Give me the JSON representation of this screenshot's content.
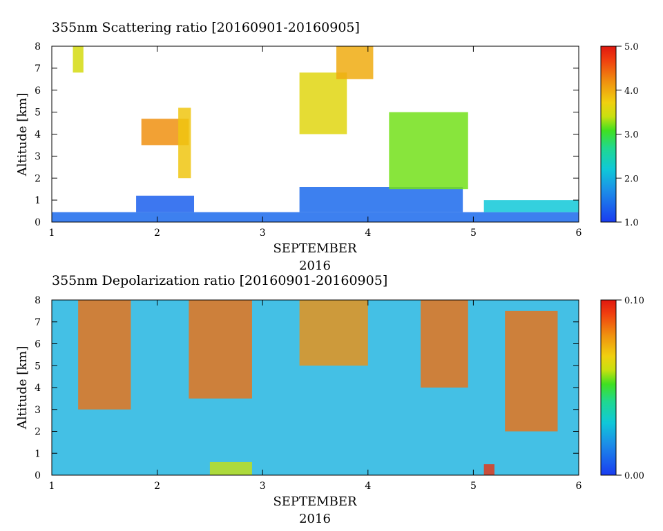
{
  "chart_data": [
    {
      "type": "heatmap",
      "title": "355nm Scattering ratio [20160901-20160905]",
      "xlabel": "SEPTEMBER",
      "xlabel2": "2016",
      "ylabel": "Altitude [km]",
      "xlim": [
        1,
        6
      ],
      "ylim": [
        0,
        8
      ],
      "xticks": [
        "1",
        "2",
        "3",
        "4",
        "5",
        "6"
      ],
      "yticks": [
        "0",
        "1",
        "2",
        "3",
        "4",
        "5",
        "6",
        "7",
        "8"
      ],
      "colorbar": {
        "min": 1.0,
        "max": 5.0,
        "ticks": [
          "1.0",
          "2.0",
          "3.0",
          "4.0",
          "5.0"
        ]
      },
      "features": [
        {
          "t0": 1.0,
          "t1": 6.0,
          "z0": 0.0,
          "z1": 0.45,
          "value": 1.4
        },
        {
          "t0": 1.8,
          "t1": 2.35,
          "z0": 0.45,
          "z1": 1.2,
          "value": 1.3
        },
        {
          "t0": 3.35,
          "t1": 4.9,
          "z0": 0.45,
          "z1": 1.6,
          "value": 1.4
        },
        {
          "t0": 5.1,
          "t1": 6.0,
          "z0": 0.45,
          "z1": 1.0,
          "value": 2.2
        },
        {
          "t0": 1.85,
          "t1": 2.3,
          "z0": 3.5,
          "z1": 4.7,
          "value": 4.2
        },
        {
          "t0": 2.2,
          "t1": 2.32,
          "z0": 2.0,
          "z1": 5.2,
          "value": 3.8
        },
        {
          "t0": 3.35,
          "t1": 3.8,
          "z0": 4.0,
          "z1": 6.8,
          "value": 3.6
        },
        {
          "t0": 3.7,
          "t1": 4.05,
          "z0": 6.5,
          "z1": 8.0,
          "value": 4.0
        },
        {
          "t0": 4.2,
          "t1": 4.95,
          "z0": 1.5,
          "z1": 5.0,
          "value": 3.2
        },
        {
          "t0": 1.2,
          "t1": 1.3,
          "z0": 6.8,
          "z1": 8.0,
          "value": 3.5
        }
      ]
    },
    {
      "type": "heatmap",
      "title": "355nm Depolarization ratio [20160901-20160905]",
      "xlabel": "SEPTEMBER",
      "xlabel2": "2016",
      "ylabel": "Altitude [km]",
      "xlim": [
        1,
        6
      ],
      "ylim": [
        0,
        8
      ],
      "xticks": [
        "1",
        "2",
        "3",
        "4",
        "5",
        "6"
      ],
      "yticks": [
        "0",
        "1",
        "2",
        "3",
        "4",
        "5",
        "6",
        "7",
        "8"
      ],
      "colorbar": {
        "min": 0.0,
        "max": 0.1,
        "ticks": [
          "0.00",
          "0.10"
        ]
      },
      "features": [
        {
          "t0": 1.0,
          "t1": 6.0,
          "z0": 0.0,
          "z1": 8.0,
          "value": 0.025
        },
        {
          "t0": 1.25,
          "t1": 1.75,
          "z0": 3.0,
          "z1": 8.0,
          "value": 0.085
        },
        {
          "t0": 2.3,
          "t1": 2.9,
          "z0": 3.5,
          "z1": 8.0,
          "value": 0.085
        },
        {
          "t0": 3.35,
          "t1": 4.0,
          "z0": 5.0,
          "z1": 8.0,
          "value": 0.08
        },
        {
          "t0": 4.5,
          "t1": 4.95,
          "z0": 4.0,
          "z1": 8.0,
          "value": 0.085
        },
        {
          "t0": 5.3,
          "t1": 5.8,
          "z0": 2.0,
          "z1": 7.5,
          "value": 0.085
        },
        {
          "t0": 5.1,
          "t1": 5.2,
          "z0": 0.0,
          "z1": 0.5,
          "value": 0.095
        },
        {
          "t0": 2.5,
          "t1": 2.9,
          "z0": 0.0,
          "z1": 0.6,
          "value": 0.06
        }
      ]
    }
  ]
}
